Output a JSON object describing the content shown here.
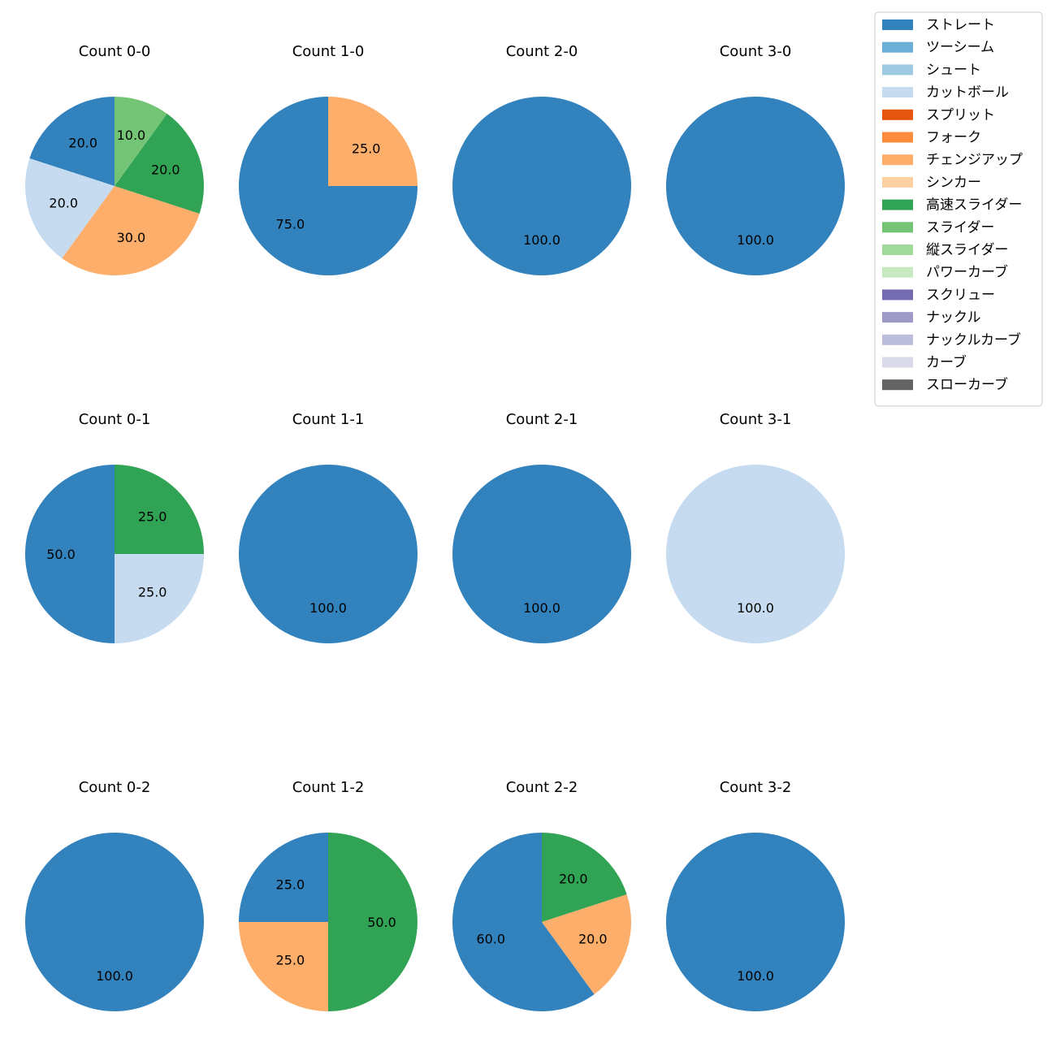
{
  "chart_data": {
    "type": "pie",
    "title": "",
    "legend": {
      "placement": "top-right",
      "entries": [
        {
          "name": "ストレート",
          "color": "#3182bd"
        },
        {
          "name": "ツーシーム",
          "color": "#6baed6"
        },
        {
          "name": "シュート",
          "color": "#9ecae1"
        },
        {
          "name": "カットボール",
          "color": "#c6dbef"
        },
        {
          "name": "スプリット",
          "color": "#e6550d"
        },
        {
          "name": "フォーク",
          "color": "#fd8d3c"
        },
        {
          "name": "チェンジアップ",
          "color": "#fdae6b"
        },
        {
          "name": "シンカー",
          "color": "#fdd0a2"
        },
        {
          "name": "高速スライダー",
          "color": "#31a354"
        },
        {
          "name": "スライダー",
          "color": "#74c476"
        },
        {
          "name": "縦スライダー",
          "color": "#a1d99b"
        },
        {
          "name": "パワーカーブ",
          "color": "#c7e9c0"
        },
        {
          "name": "スクリュー",
          "color": "#756bb1"
        },
        {
          "name": "ナックル",
          "color": "#9e9ac8"
        },
        {
          "name": "ナックルカーブ",
          "color": "#bcbddc"
        },
        {
          "name": "カーブ",
          "color": "#dadaeb"
        },
        {
          "name": "スローカーブ",
          "color": "#636363"
        }
      ]
    },
    "pies": [
      {
        "title": "Count 0-0",
        "slices": [
          {
            "pitch": "ストレート",
            "value": 20.0,
            "label": "20.0"
          },
          {
            "pitch": "カットボール",
            "value": 20.0,
            "label": "20.0"
          },
          {
            "pitch": "チェンジアップ",
            "value": 30.0,
            "label": "30.0"
          },
          {
            "pitch": "高速スライダー",
            "value": 20.0,
            "label": "20.0"
          },
          {
            "pitch": "スライダー",
            "value": 10.0,
            "label": "10.0"
          }
        ]
      },
      {
        "title": "Count 1-0",
        "slices": [
          {
            "pitch": "ストレート",
            "value": 75.0,
            "label": "75.0"
          },
          {
            "pitch": "チェンジアップ",
            "value": 25.0,
            "label": "25.0"
          }
        ]
      },
      {
        "title": "Count 2-0",
        "slices": [
          {
            "pitch": "ストレート",
            "value": 100.0,
            "label": "100.0"
          }
        ]
      },
      {
        "title": "Count 3-0",
        "slices": [
          {
            "pitch": "ストレート",
            "value": 100.0,
            "label": "100.0"
          }
        ]
      },
      {
        "title": "Count 0-1",
        "slices": [
          {
            "pitch": "ストレート",
            "value": 50.0,
            "label": "50.0"
          },
          {
            "pitch": "カットボール",
            "value": 25.0,
            "label": "25.0"
          },
          {
            "pitch": "高速スライダー",
            "value": 25.0,
            "label": "25.0"
          }
        ]
      },
      {
        "title": "Count 1-1",
        "slices": [
          {
            "pitch": "ストレート",
            "value": 100.0,
            "label": "100.0"
          }
        ]
      },
      {
        "title": "Count 2-1",
        "slices": [
          {
            "pitch": "ストレート",
            "value": 100.0,
            "label": "100.0"
          }
        ]
      },
      {
        "title": "Count 3-1",
        "slices": [
          {
            "pitch": "カットボール",
            "value": 100.0,
            "label": "100.0"
          }
        ]
      },
      {
        "title": "Count 0-2",
        "slices": [
          {
            "pitch": "ストレート",
            "value": 100.0,
            "label": "100.0"
          }
        ]
      },
      {
        "title": "Count 1-2",
        "slices": [
          {
            "pitch": "ストレート",
            "value": 25.0,
            "label": "25.0"
          },
          {
            "pitch": "チェンジアップ",
            "value": 25.0,
            "label": "25.0"
          },
          {
            "pitch": "高速スライダー",
            "value": 50.0,
            "label": "50.0"
          }
        ]
      },
      {
        "title": "Count 2-2",
        "slices": [
          {
            "pitch": "ストレート",
            "value": 60.0,
            "label": "60.0"
          },
          {
            "pitch": "チェンジアップ",
            "value": 20.0,
            "label": "20.0"
          },
          {
            "pitch": "高速スライダー",
            "value": 20.0,
            "label": "20.0"
          }
        ]
      },
      {
        "title": "Count 3-2",
        "slices": [
          {
            "pitch": "ストレート",
            "value": 100.0,
            "label": "100.0"
          }
        ]
      }
    ]
  }
}
